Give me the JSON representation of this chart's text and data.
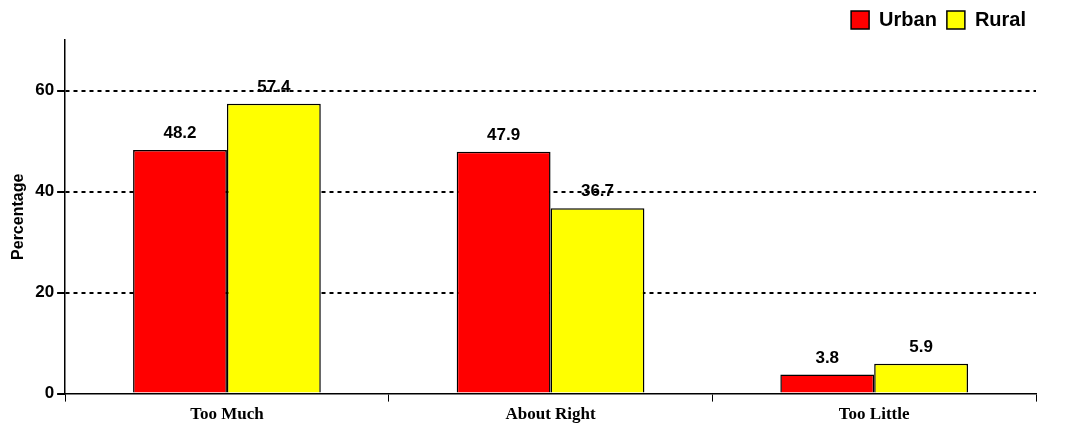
{
  "chart_data": {
    "type": "bar",
    "ylabel": "Percentage",
    "categories": [
      "Too Much",
      "About Right",
      "Too Little"
    ],
    "series": [
      {
        "name": "Urban",
        "color": "#ff0000",
        "values": [
          48.2,
          47.9,
          3.8
        ]
      },
      {
        "name": "Rural",
        "color": "#ffff00",
        "values": [
          57.4,
          36.7,
          5.9
        ]
      }
    ],
    "ylim": [
      0,
      70
    ],
    "yticks": [
      0,
      20,
      40,
      60
    ],
    "grid": "y",
    "legend": "top right",
    "data_labels": true
  }
}
